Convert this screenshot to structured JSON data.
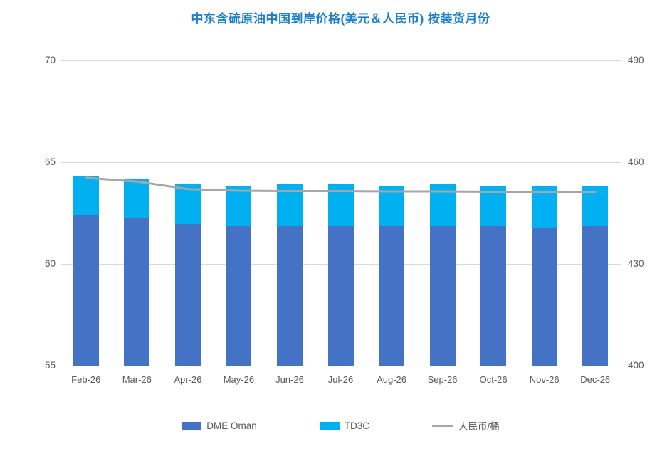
{
  "chart_data": {
    "type": "bar",
    "subtype": "stacked-bar-with-line",
    "title": "中东含硫原油中国到岸价格(美元＆人民币) 按装货月份",
    "title_color": "#1E7FC9",
    "background": "#FFFFFF",
    "grid": true,
    "gridline_color": "#D9D9D9",
    "label_color": "#595959",
    "legend_position": "bottom",
    "categories": [
      "Feb-26",
      "Mar-26",
      "Apr-26",
      "May-26",
      "Jun-26",
      "Jul-26",
      "Aug-26",
      "Sep-26",
      "Oct-26",
      "Nov-26",
      "Dec-26"
    ],
    "left_axis": {
      "min": 55,
      "max": 70,
      "ticks": [
        55,
        60,
        65,
        70
      ]
    },
    "right_axis": {
      "min": 400,
      "max": 490,
      "ticks": [
        400,
        430,
        460,
        490
      ]
    },
    "series": [
      {
        "name": "DME Oman",
        "type": "bar",
        "axis": "left",
        "color": "#4472C4",
        "values": [
          62.4,
          62.25,
          61.95,
          61.85,
          61.9,
          61.9,
          61.85,
          61.85,
          61.85,
          61.8,
          61.85
        ]
      },
      {
        "name": "TD3C",
        "type": "bar",
        "axis": "left",
        "color": "#00B0F0",
        "values": [
          1.95,
          1.95,
          1.95,
          2.0,
          2.0,
          2.0,
          2.0,
          2.05,
          2.0,
          2.05,
          2.0
        ]
      },
      {
        "name": "人民币/桶",
        "type": "line",
        "axis": "right",
        "color": "#A6A6A6",
        "values": [
          455.4,
          454.3,
          452.1,
          451.6,
          451.5,
          451.5,
          451.4,
          451.4,
          451.3,
          451.3,
          451.3
        ]
      }
    ]
  }
}
